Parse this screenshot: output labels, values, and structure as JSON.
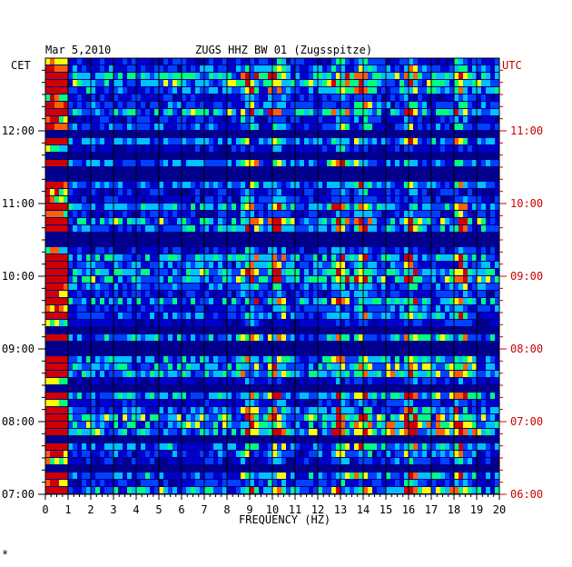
{
  "header": {
    "date": "Mar 5,2010",
    "station": "ZUGS HHZ BW 01 (Zugsspitze)"
  },
  "chart_data": {
    "type": "heatmap",
    "xlabel": "FREQUENCY (HZ)",
    "xlim": [
      0,
      20
    ],
    "x_ticks": [
      "0",
      "1",
      "2",
      "3",
      "4",
      "5",
      "6",
      "7",
      "8",
      "9",
      "10",
      "11",
      "12",
      "13",
      "14",
      "15",
      "16",
      "17",
      "18",
      "19",
      "20"
    ],
    "left_axis_title": "CET",
    "right_axis_title": "UTC",
    "ylim_cet": [
      "07:00",
      "13:00"
    ],
    "y_ticks_cet": [
      "12:00",
      "11:00",
      "10:00",
      "09:00",
      "08:00",
      "07:00"
    ],
    "y_ticks_utc": [
      "11:00",
      "10:00",
      "09:00",
      "08:00",
      "07:00",
      "06:00"
    ],
    "prominent_lines_hz": [
      0.3,
      9.0,
      10.2,
      13.0,
      14.0,
      16.1,
      18.3
    ],
    "colormap": [
      "#000080",
      "#0000cc",
      "#0040ff",
      "#00c0ff",
      "#00ff80",
      "#ffff00",
      "#ff6000",
      "#d00000"
    ],
    "background_color": "#00008c",
    "utc_color": "#cc0000"
  },
  "footer": {
    "mark": "*"
  }
}
